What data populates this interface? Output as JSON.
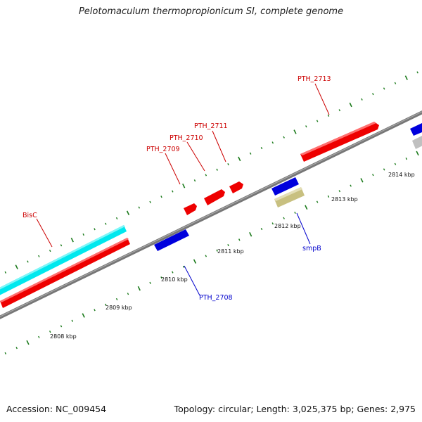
{
  "title": "Pelotomaculum thermopropionicum SI, complete genome",
  "footer": {
    "accession": "Accession: NC_009454",
    "summary": "Topology: circular; Length: 3,025,375 bp; Genes: 2,975"
  },
  "colors": {
    "forward_gene": "#ee0000",
    "reverse_gene": "#0000dd",
    "rna": "#00e8ee",
    "other": "#c8c080",
    "pseudo": "#c0c0c0",
    "label_forward": "#cc0000",
    "label_reverse": "#0000cc",
    "tick": "#1a7a1a",
    "backbone": "#777777"
  },
  "ticks": [
    {
      "label": "2808 kbp"
    },
    {
      "label": "2809 kbp"
    },
    {
      "label": "2810 kbp"
    },
    {
      "label": "2811 kbp"
    },
    {
      "label": "2812 kbp"
    },
    {
      "label": "2813 kbp"
    },
    {
      "label": "2814 kbp"
    }
  ],
  "gene_labels": [
    {
      "label": "BisC",
      "strand": "forward"
    },
    {
      "label": "PTH_2709",
      "strand": "forward"
    },
    {
      "label": "PTH_2710",
      "strand": "forward"
    },
    {
      "label": "PTH_2711",
      "strand": "forward"
    },
    {
      "label": "PTH_2713",
      "strand": "forward"
    },
    {
      "label": "PTH_2708",
      "strand": "reverse"
    },
    {
      "label": "smpB",
      "strand": "reverse"
    }
  ]
}
